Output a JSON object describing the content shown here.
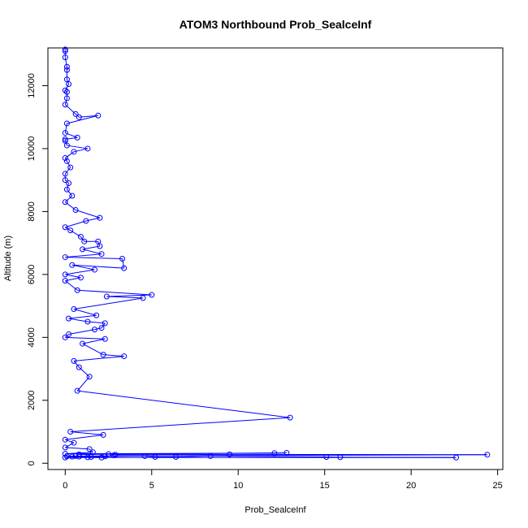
{
  "chart_data": {
    "type": "line",
    "title": "ATOM3 Northbound Prob_SealceInf",
    "xlabel": "Prob_SealceInf",
    "ylabel": "Altitude (m)",
    "xlim": [
      -1,
      25.3
    ],
    "ylim": [
      -200,
      13200
    ],
    "xticks": [
      0,
      5,
      10,
      15,
      20,
      25
    ],
    "yticks": [
      0,
      2000,
      4000,
      6000,
      8000,
      10000,
      12000
    ],
    "color": "#0000ff",
    "series": [
      {
        "name": "Prob_SealceInf vs Altitude",
        "marker": "open-circle",
        "points": [
          [
            0.0,
            13150
          ],
          [
            0.0,
            13100
          ],
          [
            0.0,
            12900
          ],
          [
            0.1,
            12600
          ],
          [
            0.1,
            12500
          ],
          [
            0.1,
            12200
          ],
          [
            0.2,
            12050
          ],
          [
            0.0,
            11850
          ],
          [
            0.1,
            11800
          ],
          [
            0.1,
            11600
          ],
          [
            0.0,
            11400
          ],
          [
            0.6,
            11100
          ],
          [
            0.8,
            11000
          ],
          [
            1.9,
            11050
          ],
          [
            0.1,
            10800
          ],
          [
            0.0,
            10500
          ],
          [
            0.7,
            10350
          ],
          [
            0.0,
            10300
          ],
          [
            0.0,
            10250
          ],
          [
            0.1,
            10100
          ],
          [
            1.3,
            10000
          ],
          [
            0.5,
            9900
          ],
          [
            0.0,
            9700
          ],
          [
            0.1,
            9600
          ],
          [
            0.3,
            9400
          ],
          [
            0.0,
            9200
          ],
          [
            0.0,
            9000
          ],
          [
            0.2,
            8900
          ],
          [
            0.1,
            8700
          ],
          [
            0.4,
            8500
          ],
          [
            0.0,
            8300
          ],
          [
            0.6,
            8050
          ],
          [
            2.0,
            7800
          ],
          [
            1.2,
            7700
          ],
          [
            0.0,
            7500
          ],
          [
            0.3,
            7400
          ],
          [
            0.9,
            7200
          ],
          [
            1.1,
            7050
          ],
          [
            1.9,
            7050
          ],
          [
            2.0,
            6900
          ],
          [
            1.0,
            6800
          ],
          [
            2.1,
            6650
          ],
          [
            0.0,
            6550
          ],
          [
            3.3,
            6500
          ],
          [
            3.4,
            6200
          ],
          [
            0.4,
            6300
          ],
          [
            1.7,
            6150
          ],
          [
            0.0,
            6000
          ],
          [
            0.9,
            5900
          ],
          [
            0.0,
            5800
          ],
          [
            0.7,
            5500
          ],
          [
            5.0,
            5350
          ],
          [
            2.4,
            5300
          ],
          [
            4.5,
            5250
          ],
          [
            0.5,
            4900
          ],
          [
            1.8,
            4700
          ],
          [
            0.2,
            4600
          ],
          [
            1.3,
            4500
          ],
          [
            2.3,
            4450
          ],
          [
            2.1,
            4300
          ],
          [
            1.7,
            4250
          ],
          [
            0.2,
            4100
          ],
          [
            0.0,
            4000
          ],
          [
            2.3,
            3950
          ],
          [
            1.0,
            3800
          ],
          [
            2.2,
            3450
          ],
          [
            3.4,
            3400
          ],
          [
            0.5,
            3250
          ],
          [
            0.8,
            3050
          ],
          [
            1.4,
            2750
          ],
          [
            0.7,
            2300
          ],
          [
            13.0,
            1450
          ],
          [
            0.3,
            1000
          ],
          [
            2.2,
            900
          ],
          [
            0.0,
            750
          ],
          [
            0.5,
            650
          ],
          [
            0.0,
            500
          ],
          [
            1.4,
            450
          ],
          [
            1.6,
            350
          ],
          [
            0.0,
            300
          ],
          [
            12.1,
            320
          ],
          [
            12.8,
            330
          ],
          [
            0.8,
            280
          ],
          [
            2.5,
            290
          ],
          [
            2.9,
            270
          ],
          [
            9.5,
            280
          ],
          [
            24.4,
            270
          ],
          [
            0.6,
            230
          ],
          [
            0.1,
            220
          ],
          [
            0.4,
            210
          ],
          [
            0.8,
            210
          ],
          [
            1.5,
            200
          ],
          [
            2.3,
            220
          ],
          [
            4.6,
            230
          ],
          [
            5.2,
            200
          ],
          [
            6.4,
            200
          ],
          [
            8.4,
            230
          ],
          [
            15.1,
            200
          ],
          [
            15.9,
            190
          ],
          [
            22.6,
            180
          ],
          [
            0.0,
            180
          ],
          [
            1.3,
            190
          ],
          [
            2.1,
            180
          ],
          [
            2.8,
            250
          ]
        ]
      }
    ]
  }
}
